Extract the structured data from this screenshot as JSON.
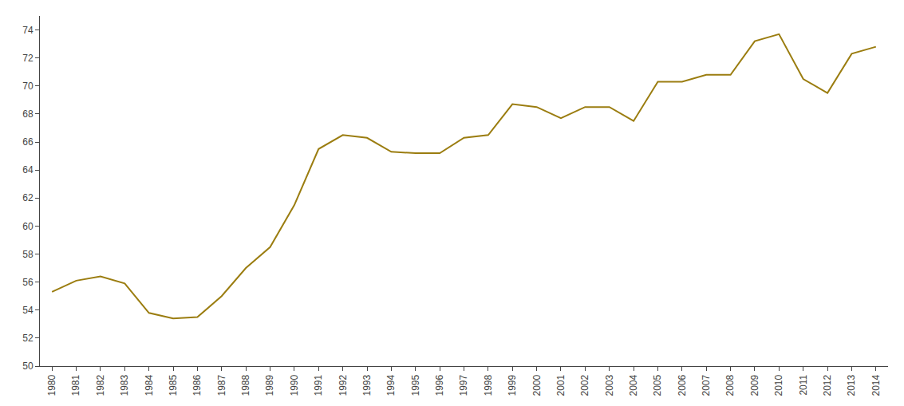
{
  "chart_data": {
    "type": "line",
    "x": [
      1980,
      1981,
      1982,
      1983,
      1984,
      1985,
      1986,
      1987,
      1988,
      1989,
      1990,
      1991,
      1992,
      1993,
      1994,
      1995,
      1996,
      1997,
      1998,
      1999,
      2000,
      2001,
      2002,
      2003,
      2004,
      2005,
      2006,
      2007,
      2008,
      2009,
      2010,
      2011,
      2012,
      2013,
      2014
    ],
    "values": [
      55.3,
      56.1,
      56.4,
      55.9,
      53.8,
      53.4,
      53.5,
      55.0,
      57.0,
      58.5,
      61.5,
      65.5,
      66.5,
      66.3,
      65.3,
      65.2,
      65.2,
      66.3,
      66.5,
      68.7,
      68.5,
      67.7,
      68.5,
      68.5,
      67.5,
      70.3,
      70.3,
      70.8,
      70.8,
      73.2,
      73.7,
      70.5,
      69.5,
      72.3,
      72.8
    ],
    "color": "#9b7d10",
    "xlim": [
      1979.5,
      2014.5
    ],
    "xticks": [
      1980,
      1981,
      1982,
      1983,
      1984,
      1985,
      1986,
      1987,
      1988,
      1989,
      1990,
      1991,
      1992,
      1993,
      1994,
      1995,
      1996,
      1997,
      1998,
      1999,
      2000,
      2001,
      2002,
      2003,
      2004,
      2005,
      2006,
      2007,
      2008,
      2009,
      2010,
      2011,
      2012,
      2013,
      2014
    ],
    "ylim": [
      50,
      75
    ],
    "yticks": [
      50,
      52,
      54,
      56,
      58,
      60,
      62,
      64,
      66,
      68,
      70,
      72,
      74
    ],
    "grid": false
  }
}
